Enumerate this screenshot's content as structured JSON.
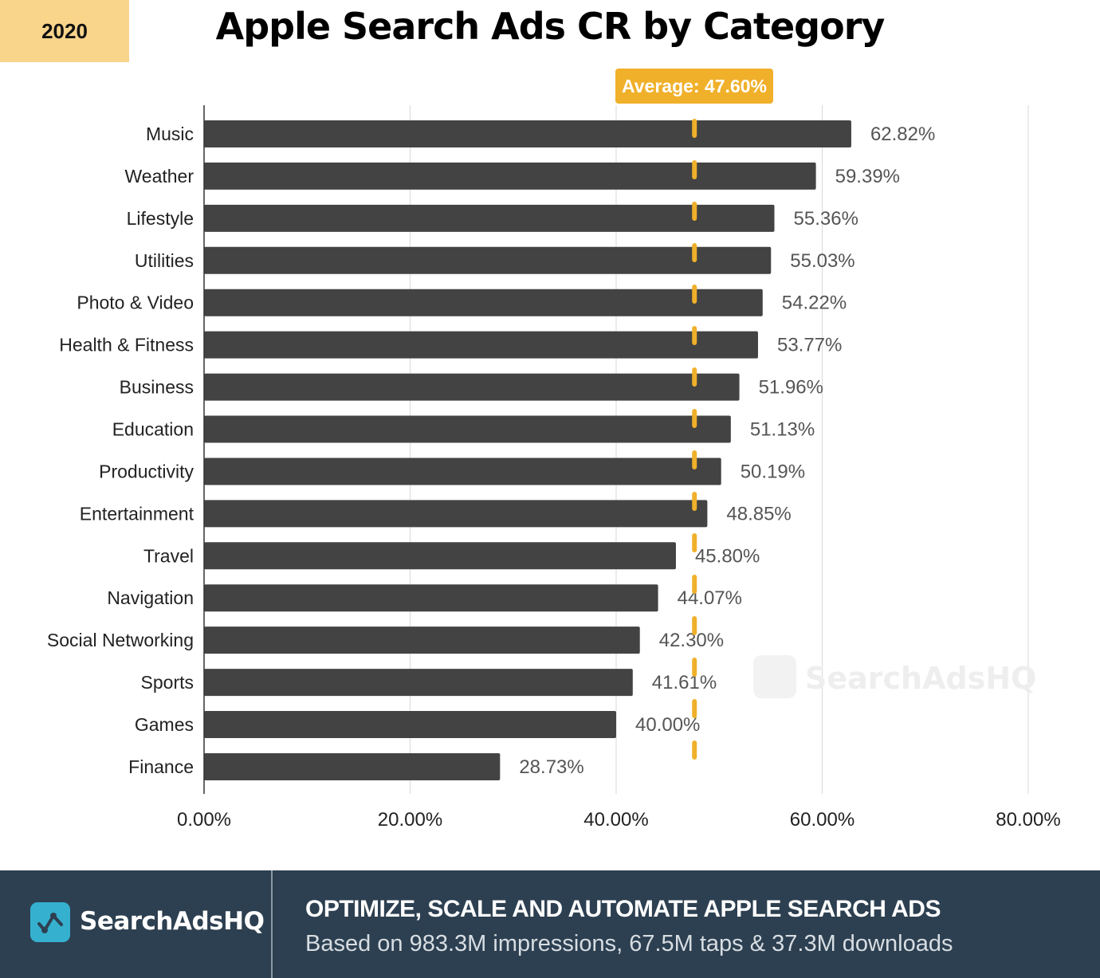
{
  "badge": "2020",
  "title": "Apple Search Ads CR by Category",
  "watermark": "SearchAdsHQ",
  "colors": {
    "bar": "#434343",
    "average": "#f0b02a",
    "badge": "#f9d48b",
    "footer": "#2d4051",
    "logo": "#36b0cf"
  },
  "chart_data": {
    "type": "bar",
    "orientation": "horizontal",
    "title": "Apple Search Ads CR by Category",
    "categories": [
      "Music",
      "Weather",
      "Lifestyle",
      "Utilities",
      "Photo & Video",
      "Health & Fitness",
      "Business",
      "Education",
      "Productivity",
      "Entertainment",
      "Travel",
      "Navigation",
      "Social Networking",
      "Sports",
      "Games",
      "Finance"
    ],
    "values": [
      62.82,
      59.39,
      55.36,
      55.03,
      54.22,
      53.77,
      51.96,
      51.13,
      50.19,
      48.85,
      45.8,
      44.07,
      42.3,
      41.61,
      40.0,
      28.73
    ],
    "value_labels": [
      "62.82%",
      "59.39%",
      "55.36%",
      "55.03%",
      "54.22%",
      "53.77%",
      "51.96%",
      "51.13%",
      "50.19%",
      "48.85%",
      "45.80%",
      "44.07%",
      "42.30%",
      "41.61%",
      "40.00%",
      "28.73%"
    ],
    "xlim": [
      0,
      80
    ],
    "xticks": [
      0,
      20,
      40,
      60,
      80
    ],
    "xtick_labels": [
      "0.00%",
      "20.00%",
      "40.00%",
      "60.00%",
      "80.00%"
    ],
    "grid": true,
    "average": {
      "value": 47.6,
      "label": "Average: 47.60%"
    }
  },
  "footer": {
    "brand": "SearchAdsHQ",
    "headline": "OPTIMIZE, SCALE AND AUTOMATE APPLE SEARCH ADS",
    "subline": "Based on 983.3M impressions, 67.5M taps & 37.3M downloads"
  }
}
